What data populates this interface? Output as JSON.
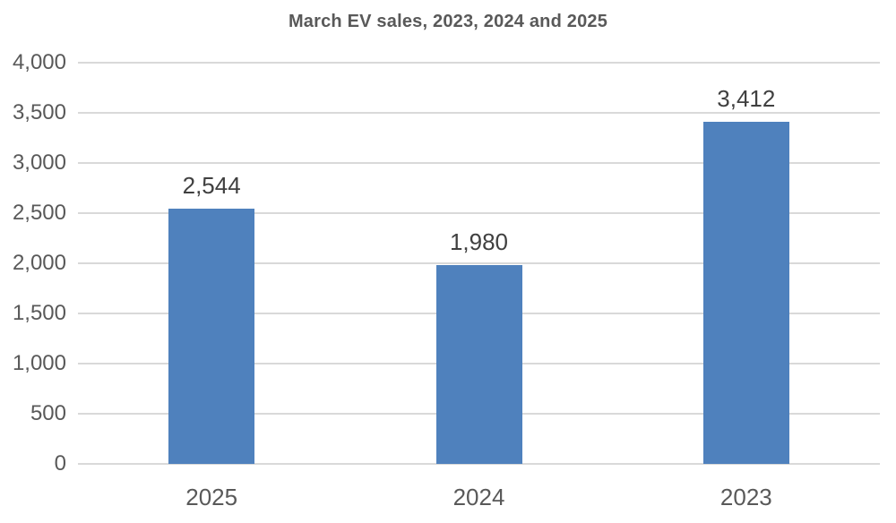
{
  "chart_data": {
    "type": "bar",
    "title": "March EV sales, 2023, 2024 and 2025",
    "categories": [
      "2025",
      "2024",
      "2023"
    ],
    "values": [
      2544,
      1980,
      3412
    ],
    "data_labels": [
      "2,544",
      "1,980",
      "3,412"
    ],
    "xlabel": "",
    "ylabel": "",
    "ylim": [
      0,
      4000
    ],
    "ytick_values": [
      0,
      500,
      1000,
      1500,
      2000,
      2500,
      3000,
      3500,
      4000
    ],
    "ytick_labels": [
      "0",
      "500",
      "1,000",
      "1,500",
      "2,000",
      "2,500",
      "3,000",
      "3,500",
      "4,000"
    ],
    "grid": "horizontal",
    "legend_position": "none",
    "colors": {
      "bar_fill": "#4f81bd",
      "gridline": "#d9d9d9",
      "title_text": "#595959",
      "axis_tick_text": "#595959",
      "data_label_text": "#404040",
      "background": "#ffffff"
    }
  }
}
